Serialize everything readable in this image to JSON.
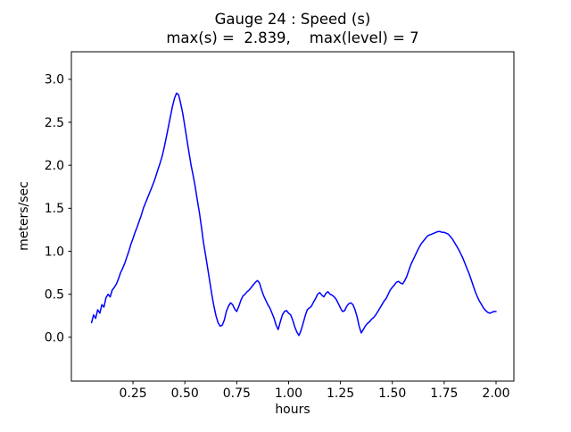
{
  "figure": {
    "background": "#ffffff",
    "axes_color": "#000000"
  },
  "chart_data": {
    "type": "line",
    "title": "Gauge 24 : Speed (s)",
    "subtitle": "max(s) =  2.839,    max(level) = 7",
    "max_s": 2.839,
    "max_level": 7,
    "xlabel": "hours",
    "ylabel": "meters/sec",
    "grid": false,
    "legend": null,
    "xlim": [
      -0.047,
      2.086
    ],
    "ylim": [
      -0.51,
      3.32
    ],
    "xtick_values": [
      0.25,
      0.5,
      0.75,
      1.0,
      1.25,
      1.5,
      1.75,
      2.0
    ],
    "xtick_labels": [
      "0.25",
      "0.50",
      "0.75",
      "1.00",
      "1.25",
      "1.50",
      "1.75",
      "2.00"
    ],
    "ytick_values": [
      0.0,
      0.5,
      1.0,
      1.5,
      2.0,
      2.5,
      3.0
    ],
    "ytick_labels": [
      "0.0",
      "0.5",
      "1.0",
      "1.5",
      "2.0",
      "2.5",
      "3.0"
    ],
    "series": [
      {
        "name": "Speed (s)",
        "color": "#0000ff",
        "points": [
          [
            0.05,
            0.17
          ],
          [
            0.06,
            0.26
          ],
          [
            0.07,
            0.22
          ],
          [
            0.08,
            0.32
          ],
          [
            0.09,
            0.28
          ],
          [
            0.1,
            0.38
          ],
          [
            0.11,
            0.35
          ],
          [
            0.12,
            0.46
          ],
          [
            0.13,
            0.5
          ],
          [
            0.14,
            0.47
          ],
          [
            0.15,
            0.55
          ],
          [
            0.16,
            0.58
          ],
          [
            0.17,
            0.62
          ],
          [
            0.18,
            0.68
          ],
          [
            0.19,
            0.75
          ],
          [
            0.2,
            0.8
          ],
          [
            0.21,
            0.86
          ],
          [
            0.22,
            0.93
          ],
          [
            0.23,
            1.0
          ],
          [
            0.24,
            1.08
          ],
          [
            0.25,
            1.15
          ],
          [
            0.26,
            1.22
          ],
          [
            0.27,
            1.28
          ],
          [
            0.28,
            1.35
          ],
          [
            0.29,
            1.42
          ],
          [
            0.3,
            1.5
          ],
          [
            0.31,
            1.56
          ],
          [
            0.32,
            1.62
          ],
          [
            0.33,
            1.68
          ],
          [
            0.34,
            1.74
          ],
          [
            0.35,
            1.8
          ],
          [
            0.36,
            1.87
          ],
          [
            0.37,
            1.95
          ],
          [
            0.38,
            2.02
          ],
          [
            0.39,
            2.1
          ],
          [
            0.4,
            2.2
          ],
          [
            0.41,
            2.32
          ],
          [
            0.42,
            2.44
          ],
          [
            0.43,
            2.56
          ],
          [
            0.44,
            2.68
          ],
          [
            0.45,
            2.78
          ],
          [
            0.46,
            2.839
          ],
          [
            0.47,
            2.82
          ],
          [
            0.48,
            2.72
          ],
          [
            0.49,
            2.6
          ],
          [
            0.5,
            2.45
          ],
          [
            0.51,
            2.3
          ],
          [
            0.52,
            2.15
          ],
          [
            0.53,
            2.0
          ],
          [
            0.54,
            1.88
          ],
          [
            0.55,
            1.75
          ],
          [
            0.56,
            1.6
          ],
          [
            0.57,
            1.45
          ],
          [
            0.58,
            1.28
          ],
          [
            0.59,
            1.1
          ],
          [
            0.6,
            0.95
          ],
          [
            0.61,
            0.8
          ],
          [
            0.62,
            0.65
          ],
          [
            0.63,
            0.5
          ],
          [
            0.64,
            0.36
          ],
          [
            0.65,
            0.25
          ],
          [
            0.66,
            0.17
          ],
          [
            0.67,
            0.13
          ],
          [
            0.68,
            0.14
          ],
          [
            0.69,
            0.2
          ],
          [
            0.7,
            0.3
          ],
          [
            0.71,
            0.36
          ],
          [
            0.72,
            0.4
          ],
          [
            0.73,
            0.38
          ],
          [
            0.74,
            0.33
          ],
          [
            0.75,
            0.3
          ],
          [
            0.76,
            0.36
          ],
          [
            0.77,
            0.43
          ],
          [
            0.78,
            0.48
          ],
          [
            0.79,
            0.5
          ],
          [
            0.8,
            0.53
          ],
          [
            0.81,
            0.55
          ],
          [
            0.82,
            0.58
          ],
          [
            0.83,
            0.61
          ],
          [
            0.84,
            0.64
          ],
          [
            0.85,
            0.66
          ],
          [
            0.86,
            0.63
          ],
          [
            0.87,
            0.55
          ],
          [
            0.88,
            0.48
          ],
          [
            0.89,
            0.43
          ],
          [
            0.9,
            0.38
          ],
          [
            0.91,
            0.34
          ],
          [
            0.92,
            0.28
          ],
          [
            0.93,
            0.22
          ],
          [
            0.94,
            0.14
          ],
          [
            0.95,
            0.09
          ],
          [
            0.96,
            0.18
          ],
          [
            0.97,
            0.26
          ],
          [
            0.98,
            0.3
          ],
          [
            0.99,
            0.31
          ],
          [
            1.0,
            0.28
          ],
          [
            1.01,
            0.26
          ],
          [
            1.02,
            0.2
          ],
          [
            1.03,
            0.12
          ],
          [
            1.04,
            0.06
          ],
          [
            1.05,
            0.02
          ],
          [
            1.06,
            0.08
          ],
          [
            1.07,
            0.16
          ],
          [
            1.08,
            0.25
          ],
          [
            1.09,
            0.32
          ],
          [
            1.1,
            0.34
          ],
          [
            1.11,
            0.36
          ],
          [
            1.12,
            0.41
          ],
          [
            1.13,
            0.45
          ],
          [
            1.14,
            0.5
          ],
          [
            1.15,
            0.52
          ],
          [
            1.16,
            0.49
          ],
          [
            1.17,
            0.47
          ],
          [
            1.18,
            0.51
          ],
          [
            1.19,
            0.53
          ],
          [
            1.2,
            0.5
          ],
          [
            1.21,
            0.49
          ],
          [
            1.22,
            0.47
          ],
          [
            1.23,
            0.44
          ],
          [
            1.24,
            0.39
          ],
          [
            1.25,
            0.34
          ],
          [
            1.26,
            0.3
          ],
          [
            1.27,
            0.31
          ],
          [
            1.28,
            0.36
          ],
          [
            1.29,
            0.39
          ],
          [
            1.3,
            0.4
          ],
          [
            1.31,
            0.38
          ],
          [
            1.32,
            0.32
          ],
          [
            1.33,
            0.24
          ],
          [
            1.34,
            0.13
          ],
          [
            1.35,
            0.05
          ],
          [
            1.36,
            0.09
          ],
          [
            1.37,
            0.13
          ],
          [
            1.38,
            0.16
          ],
          [
            1.39,
            0.18
          ],
          [
            1.4,
            0.21
          ],
          [
            1.41,
            0.23
          ],
          [
            1.42,
            0.26
          ],
          [
            1.43,
            0.3
          ],
          [
            1.44,
            0.34
          ],
          [
            1.45,
            0.38
          ],
          [
            1.46,
            0.42
          ],
          [
            1.47,
            0.45
          ],
          [
            1.48,
            0.5
          ],
          [
            1.49,
            0.55
          ],
          [
            1.5,
            0.58
          ],
          [
            1.51,
            0.61
          ],
          [
            1.52,
            0.64
          ],
          [
            1.53,
            0.65
          ],
          [
            1.54,
            0.63
          ],
          [
            1.55,
            0.62
          ],
          [
            1.56,
            0.66
          ],
          [
            1.57,
            0.71
          ],
          [
            1.58,
            0.78
          ],
          [
            1.59,
            0.85
          ],
          [
            1.6,
            0.9
          ],
          [
            1.61,
            0.95
          ],
          [
            1.62,
            1.0
          ],
          [
            1.63,
            1.05
          ],
          [
            1.64,
            1.09
          ],
          [
            1.65,
            1.12
          ],
          [
            1.66,
            1.15
          ],
          [
            1.67,
            1.18
          ],
          [
            1.68,
            1.19
          ],
          [
            1.69,
            1.2
          ],
          [
            1.7,
            1.21
          ],
          [
            1.71,
            1.22
          ],
          [
            1.72,
            1.23
          ],
          [
            1.73,
            1.23
          ],
          [
            1.74,
            1.22
          ],
          [
            1.75,
            1.22
          ],
          [
            1.76,
            1.21
          ],
          [
            1.77,
            1.2
          ],
          [
            1.78,
            1.17
          ],
          [
            1.79,
            1.14
          ],
          [
            1.8,
            1.1
          ],
          [
            1.81,
            1.06
          ],
          [
            1.82,
            1.02
          ],
          [
            1.83,
            0.97
          ],
          [
            1.84,
            0.92
          ],
          [
            1.85,
            0.86
          ],
          [
            1.86,
            0.8
          ],
          [
            1.87,
            0.74
          ],
          [
            1.88,
            0.67
          ],
          [
            1.89,
            0.6
          ],
          [
            1.9,
            0.53
          ],
          [
            1.91,
            0.47
          ],
          [
            1.92,
            0.42
          ],
          [
            1.93,
            0.38
          ],
          [
            1.94,
            0.34
          ],
          [
            1.95,
            0.31
          ],
          [
            1.96,
            0.29
          ],
          [
            1.97,
            0.28
          ],
          [
            1.98,
            0.29
          ],
          [
            1.99,
            0.3
          ],
          [
            2.0,
            0.3
          ]
        ]
      }
    ]
  }
}
